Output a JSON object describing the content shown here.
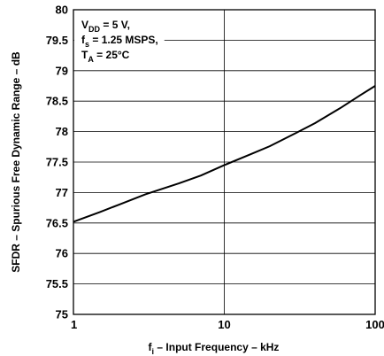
{
  "chart_data": {
    "type": "line",
    "title": "",
    "xlabel": {
      "main": "f",
      "sub": "i",
      "rest": " – Input Frequency – kHz"
    },
    "ylabel": "SFDR – Spurious Free Dynamic Range – dB",
    "xscale": "log",
    "xlim": [
      1,
      100
    ],
    "ylim": [
      75,
      80
    ],
    "grid": true,
    "x_ticks": [
      "1",
      "10",
      "100"
    ],
    "y_ticks": [
      "75",
      "75.5",
      "76",
      "76.5",
      "77",
      "77.5",
      "78",
      "78.5",
      "79",
      "79.5",
      "80"
    ],
    "annotation": [
      {
        "main": "V",
        "sub": "DD",
        "rest": " = 5 V,"
      },
      {
        "main": "f",
        "sub": "s",
        "rest": " = 1.25 MSPS,"
      },
      {
        "main": "T",
        "sub": "A",
        "rest": " = 25°C"
      }
    ],
    "series": [
      {
        "x": [
          1,
          1.5,
          2,
          3,
          5,
          7,
          10,
          15,
          20,
          30,
          40,
          60,
          80,
          100
        ],
        "y": [
          76.52,
          76.68,
          76.8,
          76.97,
          77.15,
          77.28,
          77.45,
          77.63,
          77.76,
          77.98,
          78.14,
          78.4,
          78.6,
          78.75
        ]
      }
    ]
  }
}
